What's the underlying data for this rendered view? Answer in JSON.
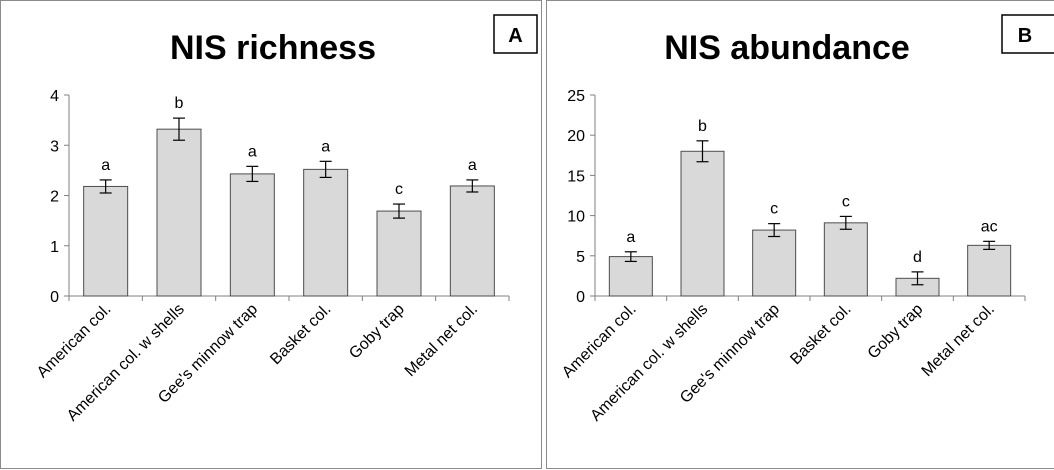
{
  "colors": {
    "bar_fill": "#d9d9d9",
    "bar_stroke": "#4d4d4d",
    "axis": "#808080",
    "panel_border": "#8c8c8c"
  },
  "chart_data": [
    {
      "type": "bar",
      "panel_label": "A",
      "title": "NIS richness",
      "categories": [
        "American col.",
        "American col. w shells",
        "Gee's minnow trap",
        "Basket col.",
        "Goby trap",
        "Metal net col."
      ],
      "values": [
        2.18,
        3.32,
        2.43,
        2.52,
        1.69,
        2.19
      ],
      "errors": [
        0.13,
        0.22,
        0.15,
        0.16,
        0.14,
        0.12
      ],
      "significance": [
        "a",
        "b",
        "a",
        "a",
        "c",
        "a"
      ],
      "ylim": [
        0,
        4
      ],
      "yticks": [
        "0",
        "1",
        "2",
        "3",
        "4"
      ],
      "xlabel": "",
      "ylabel": "",
      "grid": false,
      "legend": "none"
    },
    {
      "type": "bar",
      "panel_label": "B",
      "title": "NIS abundance",
      "categories": [
        "American col.",
        "American col. w shells",
        "Gee's minnow trap",
        "Basket col.",
        "Goby trap",
        "Metal net col."
      ],
      "values": [
        4.9,
        18.0,
        8.2,
        9.1,
        2.2,
        6.3
      ],
      "errors": [
        0.6,
        1.3,
        0.8,
        0.8,
        0.8,
        0.5
      ],
      "significance": [
        "a",
        "b",
        "c",
        "c",
        "d",
        "ac"
      ],
      "ylim": [
        0,
        25
      ],
      "yticks": [
        "0",
        "5",
        "10",
        "15",
        "20",
        "25"
      ],
      "xlabel": "",
      "ylabel": "",
      "grid": false,
      "legend": "none"
    }
  ]
}
